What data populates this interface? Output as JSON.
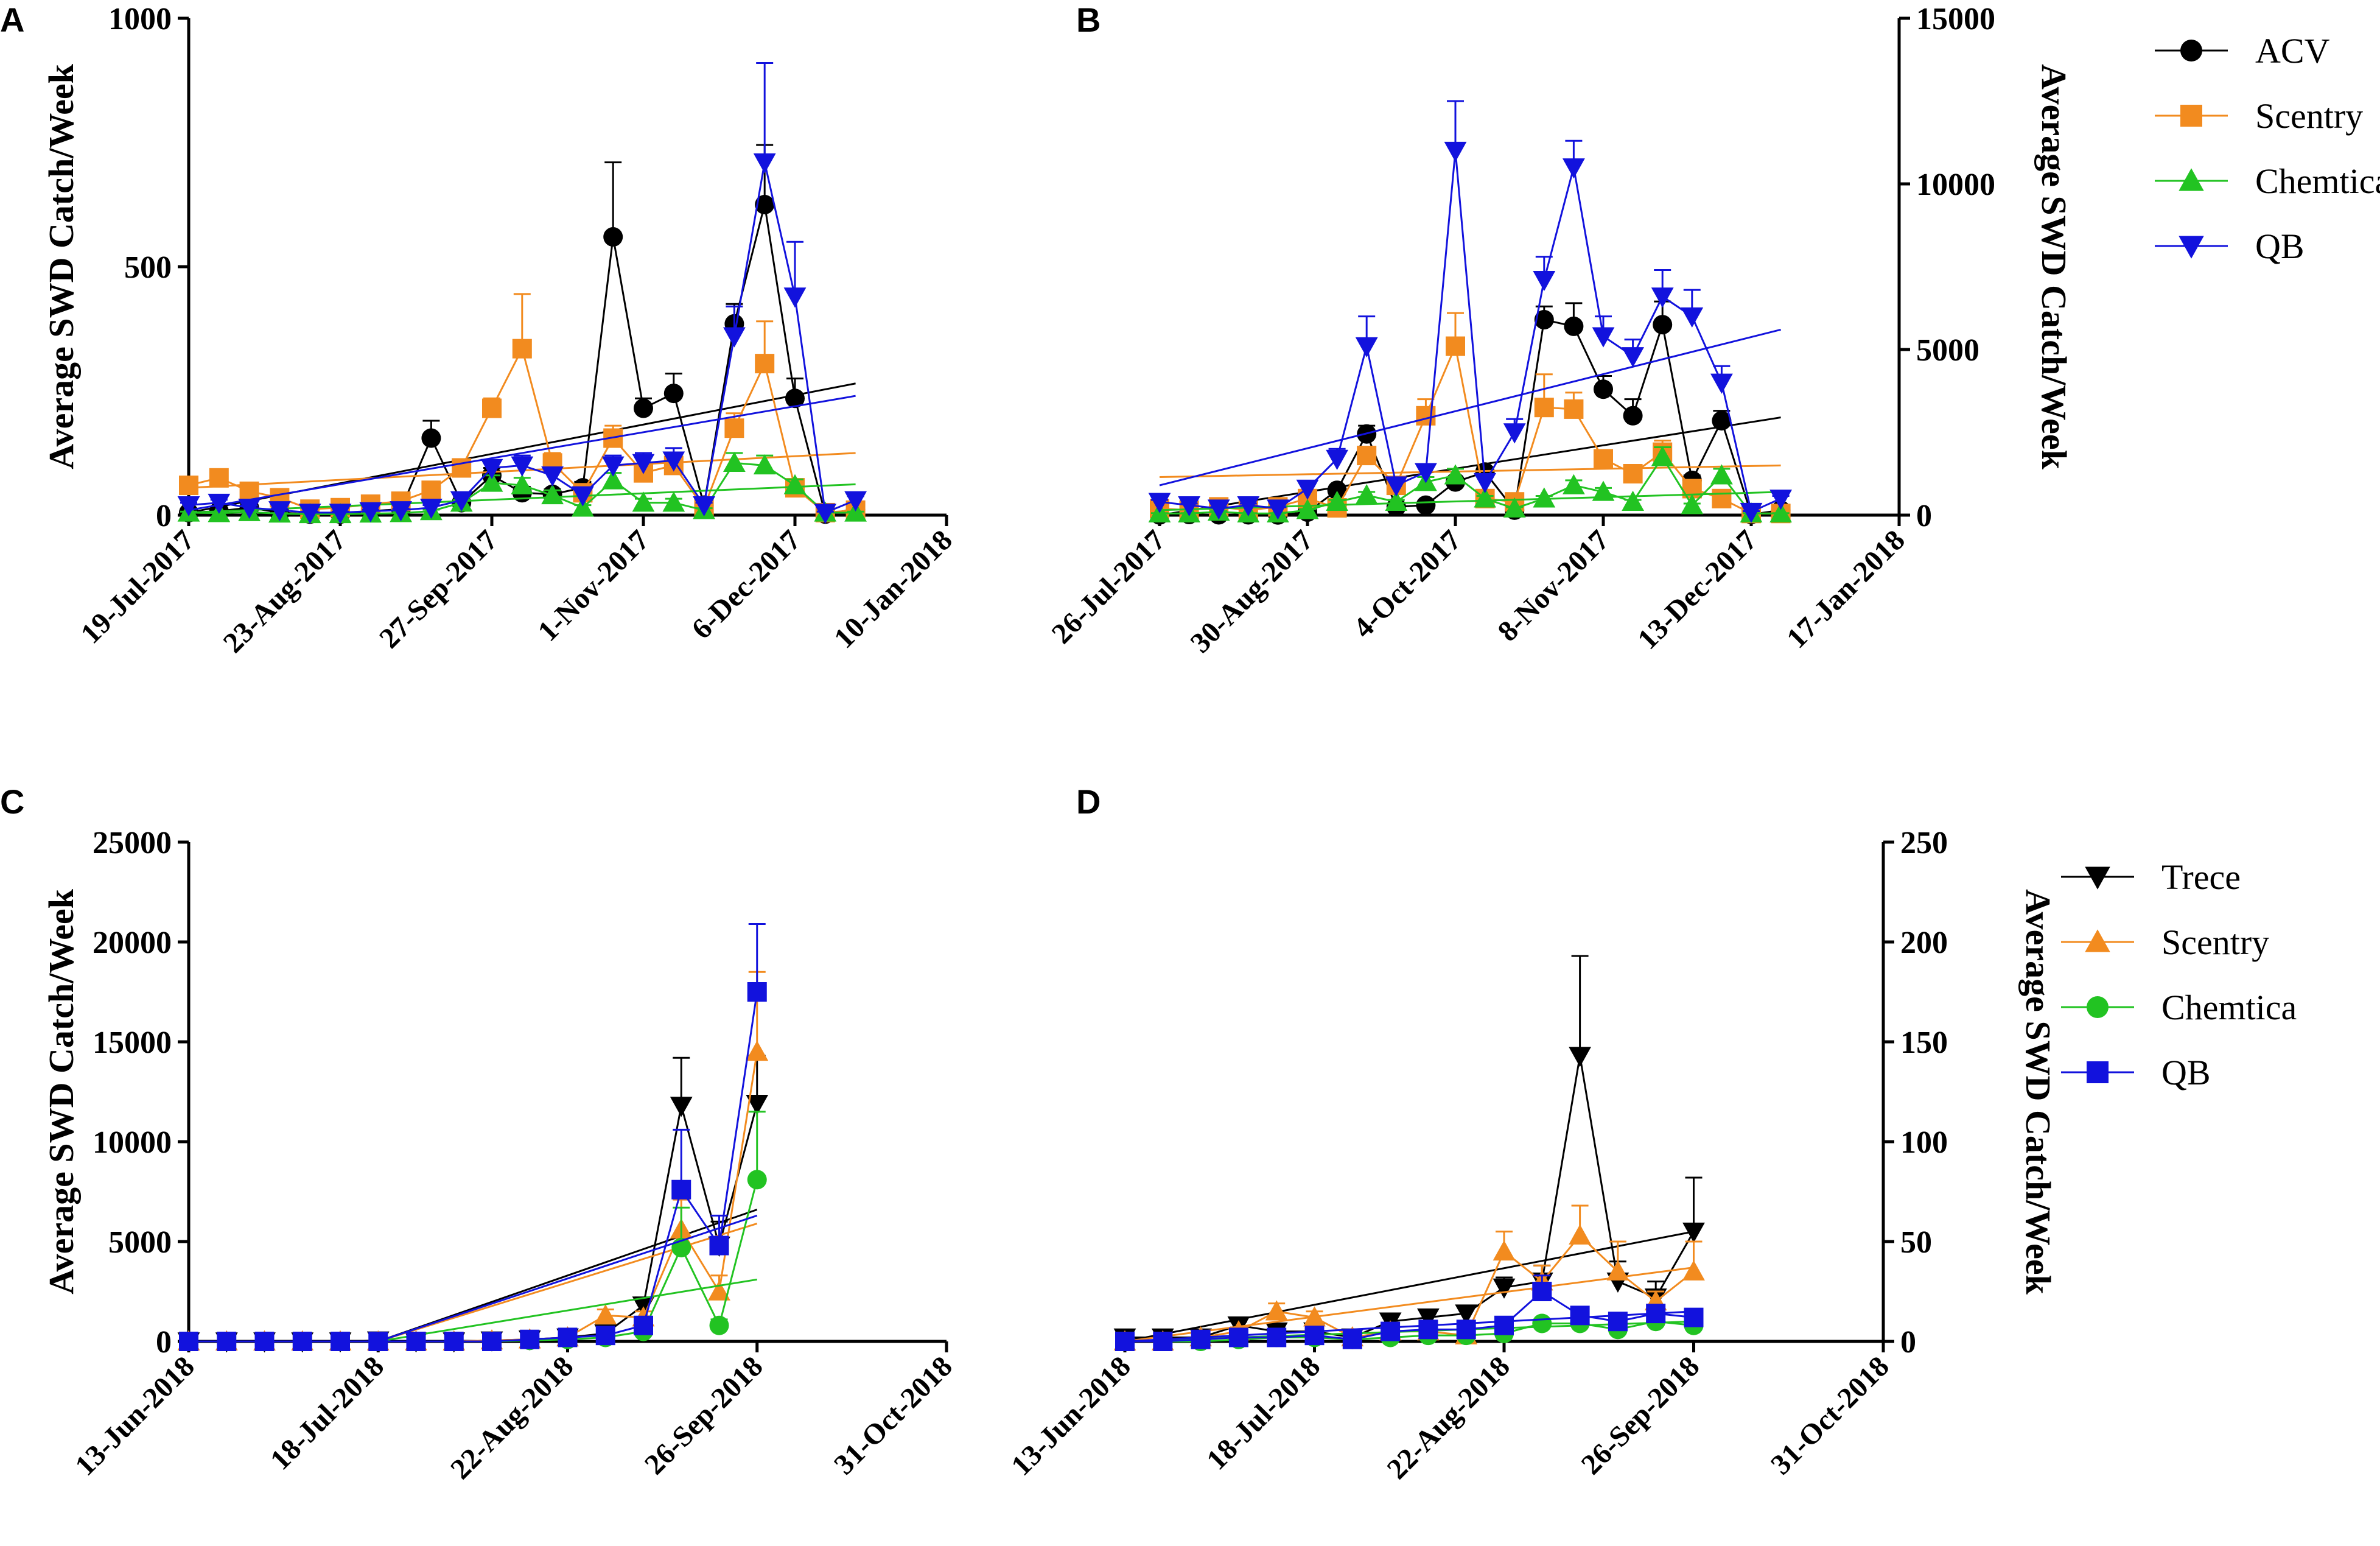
{
  "chart_data": [
    {
      "panel": "A",
      "type": "line",
      "ylabel": "Average SWD Catch/Week",
      "ylim": [
        0,
        1000
      ],
      "yticks": [
        0,
        500,
        1000
      ],
      "xlim": [
        0,
        175
      ],
      "xtick_pos": [
        0,
        35,
        70,
        105,
        140,
        175
      ],
      "xticks": [
        "19-Jul-2017",
        "23-Aug-2017",
        "27-Sep-2017",
        "1-Nov-2017",
        "6-Dec-2017",
        "10-Jan-2018"
      ],
      "x": [
        0,
        7,
        14,
        21,
        28,
        35,
        42,
        49,
        56,
        63,
        70,
        77,
        84,
        91,
        98,
        105,
        112,
        119,
        126,
        133,
        140,
        147,
        154,
        161
      ],
      "series": [
        {
          "name": "ACV",
          "marker": "circle",
          "color": "#000000",
          "values": [
            5,
            8,
            15,
            5,
            2,
            2,
            8,
            12,
            155,
            25,
            80,
            45,
            42,
            55,
            560,
            215,
            245,
            20,
            385,
            625,
            235,
            2,
            12,
            null
          ],
          "errors": [
            2,
            3,
            5,
            2,
            1,
            1,
            3,
            4,
            35,
            6,
            15,
            12,
            10,
            12,
            150,
            20,
            40,
            6,
            40,
            120,
            40,
            1,
            4,
            null
          ],
          "trend": [
            5,
            265
          ]
        },
        {
          "name": "Scentry",
          "marker": "square",
          "color": "#F28B1F",
          "values": [
            60,
            75,
            48,
            35,
            12,
            15,
            22,
            28,
            50,
            95,
            215,
            335,
            105,
            45,
            155,
            85,
            100,
            15,
            175,
            305,
            55,
            5,
            10,
            null
          ],
          "errors": [
            8,
            10,
            8,
            6,
            3,
            4,
            5,
            6,
            10,
            15,
            20,
            110,
            20,
            10,
            25,
            15,
            20,
            5,
            30,
            85,
            12,
            2,
            3,
            null
          ],
          "trend": [
            55,
            125
          ]
        },
        {
          "name": "Chemtica",
          "marker": "triangle-up",
          "color": "#22C322",
          "values": [
            5,
            4,
            6,
            3,
            2,
            2,
            3,
            4,
            8,
            25,
            65,
            60,
            40,
            15,
            70,
            25,
            25,
            10,
            105,
            100,
            60,
            5,
            5,
            null
          ],
          "errors": [
            2,
            2,
            2,
            1,
            1,
            1,
            1,
            2,
            3,
            6,
            15,
            15,
            10,
            5,
            15,
            8,
            8,
            4,
            20,
            20,
            12,
            2,
            2,
            null
          ],
          "trend": [
            5,
            62
          ]
        },
        {
          "name": "QB",
          "marker": "triangle-down",
          "color": "#1212DD",
          "values": [
            20,
            25,
            15,
            10,
            5,
            5,
            8,
            10,
            15,
            30,
            95,
            100,
            80,
            40,
            100,
            105,
            110,
            20,
            360,
            710,
            440,
            5,
            30,
            null
          ],
          "errors": [
            5,
            6,
            4,
            3,
            2,
            2,
            3,
            3,
            5,
            8,
            15,
            20,
            15,
            10,
            20,
            20,
            25,
            5,
            60,
            200,
            110,
            2,
            8,
            null
          ],
          "trend": [
            10,
            240
          ]
        }
      ]
    },
    {
      "panel": "B",
      "type": "line",
      "ylabel": "Average SWD Catch/Week",
      "ylim": [
        0,
        15000
      ],
      "yticks": [
        0,
        5000,
        10000,
        15000
      ],
      "xlim": [
        0,
        175
      ],
      "xtick_pos": [
        0,
        35,
        70,
        105,
        140,
        175
      ],
      "xticks": [
        "26-Jul-2017",
        "30-Aug-2017",
        "4-Oct-2017",
        "8-Nov-2017",
        "13-Dec-2017",
        "17-Jan-2018"
      ],
      "x": [
        0,
        7,
        14,
        21,
        28,
        35,
        42,
        49,
        56,
        63,
        70,
        77,
        84,
        91,
        98,
        105,
        112,
        119,
        126,
        133,
        140,
        147,
        154,
        161
      ],
      "series": [
        {
          "name": "ACV",
          "marker": "circle",
          "color": "#000000",
          "values": [
            5,
            20,
            10,
            10,
            5,
            90,
            750,
            2450,
            250,
            300,
            1000,
            1300,
            150,
            5900,
            5700,
            3800,
            3000,
            5750,
            1050,
            2850,
            20,
            150,
            null,
            null
          ],
          "errors": [
            2,
            5,
            3,
            3,
            2,
            20,
            80,
            250,
            30,
            40,
            100,
            150,
            30,
            400,
            700,
            400,
            500,
            700,
            150,
            300,
            5,
            30,
            null,
            null
          ],
          "trend": [
            0,
            2950
          ]
        },
        {
          "name": "Scentry",
          "marker": "square",
          "color": "#F28B1F",
          "values": [
            200,
            150,
            250,
            150,
            250,
            500,
            220,
            1800,
            900,
            3000,
            5100,
            500,
            400,
            3250,
            3200,
            1700,
            1250,
            1900,
            800,
            500,
            50,
            50,
            null,
            null
          ],
          "errors": [
            30,
            25,
            30,
            25,
            30,
            60,
            40,
            250,
            120,
            500,
            1000,
            80,
            60,
            1000,
            500,
            250,
            200,
            350,
            120,
            80,
            10,
            10,
            null,
            null
          ],
          "trend": [
            1150,
            1500
          ]
        },
        {
          "name": "Chemtica",
          "marker": "triangle-up",
          "color": "#22C322",
          "values": [
            50,
            50,
            100,
            50,
            50,
            150,
            400,
            600,
            400,
            1000,
            1200,
            500,
            200,
            500,
            900,
            700,
            400,
            1750,
            300,
            1200,
            50,
            50,
            null,
            null
          ],
          "errors": [
            10,
            10,
            20,
            10,
            10,
            30,
            60,
            100,
            60,
            150,
            200,
            80,
            40,
            80,
            150,
            120,
            60,
            300,
            50,
            200,
            10,
            10,
            null,
            null
          ],
          "trend": [
            150,
            700
          ]
        },
        {
          "name": "QB",
          "marker": "triangle-down",
          "color": "#1212DD",
          "values": [
            400,
            300,
            200,
            300,
            200,
            800,
            1700,
            5100,
            900,
            1300,
            11000,
            1000,
            2500,
            7100,
            10500,
            5400,
            4800,
            6600,
            6000,
            4000,
            100,
            500,
            null,
            null
          ],
          "errors": [
            60,
            50,
            40,
            50,
            40,
            150,
            300,
            900,
            150,
            200,
            1500,
            150,
            400,
            700,
            800,
            600,
            500,
            800,
            800,
            500,
            20,
            80,
            null,
            null
          ],
          "trend": [
            900,
            5600
          ]
        }
      ]
    },
    {
      "panel": "C",
      "type": "line",
      "ylabel": "Average SWD Catch/Week",
      "ylim": [
        0,
        25000
      ],
      "yticks": [
        0,
        5000,
        10000,
        15000,
        20000,
        25000
      ],
      "xlim": [
        0,
        140
      ],
      "xtick_pos": [
        0,
        35,
        70,
        105,
        140
      ],
      "xticks": [
        "13-Jun-2018",
        "18-Jul-2018",
        "22-Aug-2018",
        "26-Sep-2018",
        "31-Oct-2018"
      ],
      "x": [
        0,
        7,
        14,
        21,
        28,
        35,
        42,
        49,
        56,
        63,
        70,
        77,
        84,
        91,
        98,
        105
      ],
      "series": [
        {
          "name": "Trece",
          "marker": "triangle-down",
          "color": "#000000",
          "values": [
            0,
            0,
            0,
            0,
            0,
            50,
            0,
            0,
            50,
            100,
            200,
            400,
            1800,
            11800,
            4800,
            11900
          ],
          "errors": [
            0,
            0,
            0,
            0,
            0,
            20,
            0,
            0,
            20,
            30,
            50,
            100,
            400,
            2400,
            1200,
            2400
          ],
          "trend": [
            0,
            6600
          ],
          "trend_x": [
            35,
            105
          ]
        },
        {
          "name": "Scentry",
          "marker": "triangle-up",
          "color": "#F28B1F",
          "values": [
            0,
            0,
            0,
            0,
            0,
            0,
            0,
            0,
            50,
            100,
            200,
            1300,
            1200,
            5600,
            2500,
            14500
          ],
          "errors": [
            0,
            0,
            0,
            0,
            0,
            0,
            0,
            0,
            20,
            30,
            50,
            300,
            300,
            1500,
            800,
            4000
          ],
          "trend": [
            0,
            5900
          ],
          "trend_x": [
            35,
            105
          ]
        },
        {
          "name": "Chemtica",
          "marker": "circle",
          "color": "#22C322",
          "values": [
            0,
            0,
            0,
            0,
            0,
            0,
            0,
            0,
            0,
            50,
            100,
            200,
            500,
            4700,
            800,
            8100
          ],
          "errors": [
            0,
            0,
            0,
            0,
            0,
            0,
            0,
            0,
            0,
            20,
            30,
            50,
            150,
            2000,
            300,
            3400
          ],
          "trend": [
            0,
            3100
          ],
          "trend_x": [
            35,
            105
          ]
        },
        {
          "name": "QB",
          "marker": "square",
          "color": "#1212DD",
          "values": [
            0,
            0,
            0,
            0,
            0,
            0,
            0,
            0,
            0,
            100,
            200,
            300,
            800,
            7600,
            4800,
            17500
          ],
          "errors": [
            0,
            0,
            0,
            0,
            0,
            0,
            0,
            0,
            0,
            30,
            50,
            80,
            300,
            3000,
            1500,
            3400
          ],
          "trend": [
            0,
            6300
          ],
          "trend_x": [
            35,
            105
          ]
        }
      ]
    },
    {
      "panel": "D",
      "type": "line",
      "ylabel": "Average SWD Catch/Week",
      "ylim": [
        0,
        250
      ],
      "yticks": [
        0,
        50,
        100,
        150,
        200,
        250
      ],
      "xlim": [
        0,
        140
      ],
      "xtick_pos": [
        0,
        35,
        70,
        105,
        140
      ],
      "xticks": [
        "13-Jun-2018",
        "18-Jul-2018",
        "22-Aug-2018",
        "26-Sep-2018",
        "31-Oct-2018"
      ],
      "x": [
        0,
        7,
        14,
        21,
        28,
        35,
        42,
        49,
        56,
        63,
        70,
        77,
        84,
        91,
        98,
        105
      ],
      "series": [
        {
          "name": "Trece",
          "marker": "triangle-down",
          "color": "#000000",
          "values": [
            2,
            2,
            2,
            8,
            5,
            5,
            2,
            10,
            12,
            14,
            27,
            30,
            143,
            30,
            22,
            55
          ],
          "errors": [
            1,
            1,
            1,
            2,
            2,
            2,
            1,
            3,
            3,
            4,
            5,
            8,
            50,
            10,
            8,
            27
          ],
          "trend": [
            0,
            55
          ]
        },
        {
          "name": "Scentry",
          "marker": "triangle-up",
          "color": "#F28B1F",
          "values": [
            0,
            0,
            2,
            5,
            15,
            12,
            2,
            5,
            5,
            3,
            45,
            30,
            53,
            35,
            20,
            35
          ],
          "errors": [
            0,
            0,
            1,
            2,
            4,
            3,
            1,
            2,
            2,
            1,
            10,
            8,
            15,
            15,
            5,
            15
          ],
          "trend": [
            0,
            37
          ]
        },
        {
          "name": "Chemtica",
          "marker": "circle",
          "color": "#22C322",
          "values": [
            0,
            0,
            0,
            1,
            2,
            2,
            1,
            2,
            3,
            3,
            4,
            9,
            9,
            6,
            10,
            8
          ],
          "errors": [
            0,
            0,
            0,
            1,
            1,
            1,
            1,
            1,
            1,
            1,
            1,
            2,
            3,
            2,
            3,
            2
          ],
          "trend": [
            0,
            10
          ]
        },
        {
          "name": "QB",
          "marker": "square",
          "color": "#1212DD",
          "values": [
            0,
            0,
            1,
            2,
            2,
            3,
            1,
            5,
            6,
            6,
            8,
            25,
            13,
            10,
            14,
            12
          ],
          "errors": [
            0,
            0,
            1,
            1,
            1,
            1,
            1,
            2,
            2,
            2,
            3,
            8,
            3,
            3,
            4,
            3
          ],
          "trend": [
            0,
            15
          ]
        }
      ]
    }
  ],
  "panels": {
    "A": {
      "letter": "A"
    },
    "B": {
      "letter": "B"
    },
    "C": {
      "letter": "C"
    },
    "D": {
      "letter": "D"
    }
  },
  "legend_top": [
    {
      "name": "ACV",
      "marker": "circle",
      "color": "#000000"
    },
    {
      "name": "Scentry",
      "marker": "square",
      "color": "#F28B1F"
    },
    {
      "name": "Chemtica",
      "marker": "triangle-up",
      "color": "#22C322"
    },
    {
      "name": "QB",
      "marker": "triangle-down",
      "color": "#1212DD"
    }
  ],
  "legend_bottom": [
    {
      "name": "Trece",
      "marker": "triangle-down",
      "color": "#000000"
    },
    {
      "name": "Scentry",
      "marker": "triangle-up",
      "color": "#F28B1F"
    },
    {
      "name": "Chemtica",
      "marker": "circle",
      "color": "#22C322"
    },
    {
      "name": "QB",
      "marker": "square",
      "color": "#1212DD"
    }
  ]
}
